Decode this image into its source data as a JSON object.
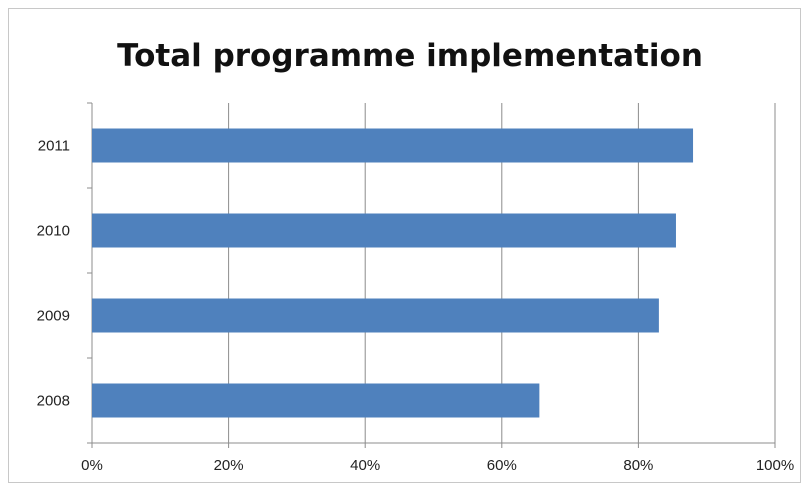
{
  "chart_data": {
    "type": "bar",
    "orientation": "horizontal",
    "title": "Total programme implementation",
    "categories": [
      "2011",
      "2010",
      "2009",
      "2008"
    ],
    "values": [
      88,
      85.5,
      83,
      65.5
    ],
    "xlim": [
      0,
      100
    ],
    "x_ticks": [
      0,
      20,
      40,
      60,
      80,
      100
    ],
    "x_tick_labels": [
      "0%",
      "20%",
      "40%",
      "60%",
      "80%",
      "100%"
    ],
    "grid": "vertical",
    "legend": "none",
    "bar_color": "#4f81bd"
  }
}
